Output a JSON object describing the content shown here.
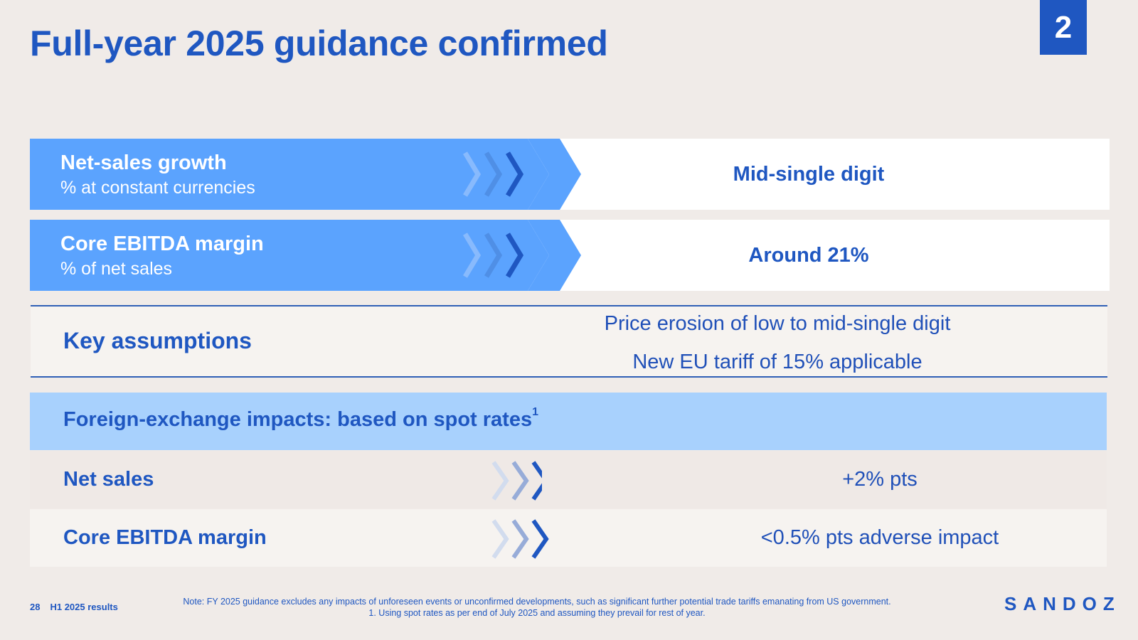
{
  "header": {
    "title": "Full-year 2025 guidance confirmed",
    "section_number": "2"
  },
  "guidance": [
    {
      "label": "Net-sales growth",
      "sublabel": "% at constant currencies",
      "value": "Mid-single digit"
    },
    {
      "label": "Core EBITDA margin",
      "sublabel": "% of net sales",
      "value": "Around 21%"
    }
  ],
  "assumptions": {
    "label": "Key assumptions",
    "items": [
      "Price erosion of low to mid-single digit",
      "New EU tariff of 15% applicable"
    ]
  },
  "fx": {
    "heading": "Foreign-exchange impacts: based on spot rates",
    "heading_footnote": "1",
    "rows": [
      {
        "label": "Net sales",
        "value": "+2% pts"
      },
      {
        "label": "Core EBITDA margin",
        "value": "<0.5% pts adverse impact"
      }
    ]
  },
  "footer": {
    "page_number": "28",
    "doc_name": "H1 2025 results",
    "note_line1": "Note: FY 2025 guidance excludes any impacts of unforeseen events or unconfirmed developments, such as significant further potential trade tariffs emanating from US government.",
    "note_line2": "1. Using spot rates as per end of July 2025 and assuming they prevail for rest of year.",
    "logo_text": "SANDOZ"
  },
  "colors": {
    "primary_blue": "#1f57c1",
    "band_blue": "#5ba3fe",
    "fx_header_blue": "#a8d1fd",
    "background": "#f0ebe8"
  },
  "icons": [
    "chevron-arrows-icon"
  ]
}
